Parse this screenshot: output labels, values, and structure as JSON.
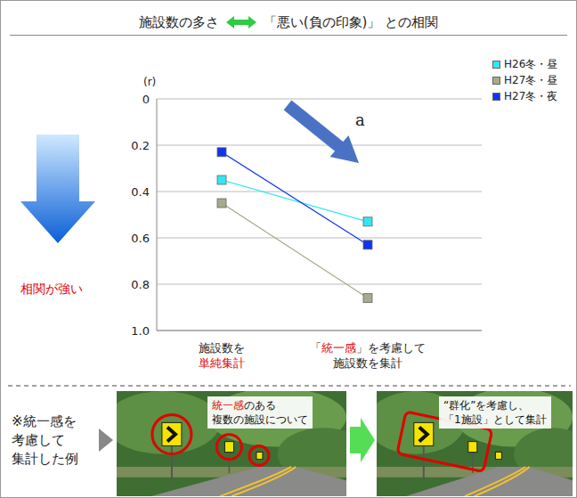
{
  "chart_data": {
    "type": "line",
    "title_parts": [
      "施設数の多さ",
      "「悪い(負の印象)」 との相関"
    ],
    "y_label": "(r)",
    "categories": [
      "施設数を\n単純集計",
      "「統一感」を考慮して\n施設数を集計"
    ],
    "highlight_texts": [
      "単純集計",
      "統一感"
    ],
    "series": [
      {
        "name": "H26冬・昼",
        "color": "#33e6f2",
        "values": [
          0.35,
          0.53
        ]
      },
      {
        "name": "H27冬・昼",
        "color": "#a9a98c",
        "values": [
          0.45,
          0.86
        ]
      },
      {
        "name": "H27冬・夜",
        "color": "#1034f0",
        "values": [
          0.23,
          0.63
        ]
      }
    ],
    "ylim": [
      1,
      0
    ],
    "yticks": [
      0,
      0.2,
      0.4,
      0.6,
      0.8,
      {
        "value": 1,
        "label": "1.0"
      }
    ],
    "grid": true,
    "legend": "top-right",
    "marker": "square",
    "annotations": {
      "arrow_label": "a",
      "strength_label": "相関が強い"
    }
  },
  "example": {
    "label": "※統一感を\n考慮して\n集計した例",
    "before_text": "統一感のある\n複数の施設について",
    "after_text": "“群化”を考慮し、\n「1施設」として集計"
  }
}
